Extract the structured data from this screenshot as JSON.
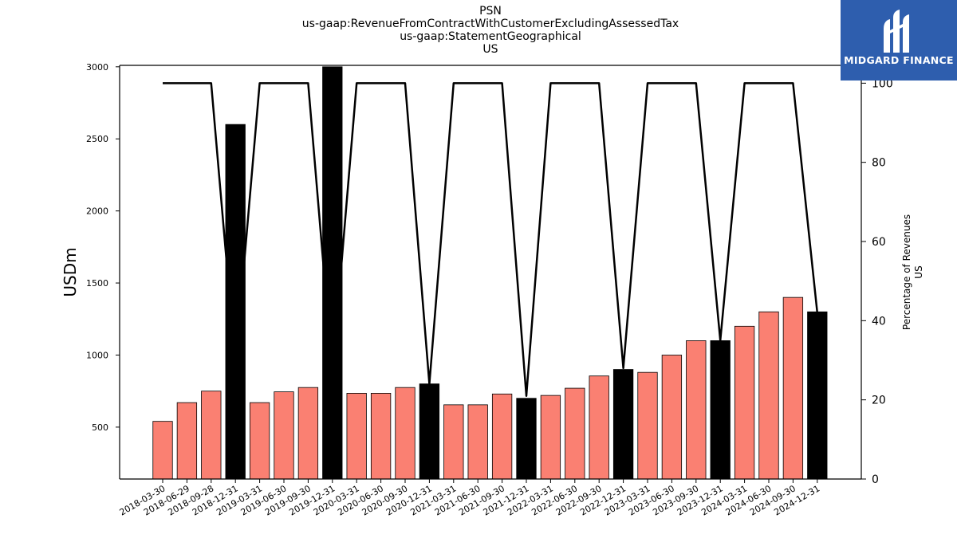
{
  "title_lines": [
    "PSN",
    "us-gaap:RevenueFromContractWithCustomerExcludingAssessedTax",
    "us-gaap:StatementGeographical",
    "US"
  ],
  "logo": {
    "text": "MIDGARD FINANCE",
    "color": "#2e5eae"
  },
  "colors": {
    "bar_regular": "#fa8072",
    "bar_highlight": "#000000",
    "line": "#000000"
  },
  "chart_data": {
    "type": "bar",
    "title": "PSN",
    "ylabel": "USDm",
    "y2label": [
      "Percentage of Revenues",
      "US"
    ],
    "ylim": [
      140,
      3010
    ],
    "y2lim": [
      0,
      104.5
    ],
    "yticks": [
      500,
      1000,
      1500,
      2000,
      2500,
      3000
    ],
    "y2ticks": [
      0,
      20,
      40,
      60,
      80,
      100
    ],
    "categories": [
      "2018-03-30",
      "2018-06-29",
      "2018-09-28",
      "2018-12-31",
      "2019-03-31",
      "2019-06-30",
      "2019-09-30",
      "2019-12-31",
      "2020-03-31",
      "2020-06-30",
      "2020-09-30",
      "2020-12-31",
      "2021-03-31",
      "2021-06-30",
      "2021-09-30",
      "2021-12-31",
      "2022-03-31",
      "2022-06-30",
      "2022-09-30",
      "2022-12-31",
      "2023-03-31",
      "2023-06-30",
      "2023-09-30",
      "2023-12-31",
      "2024-03-31",
      "2024-06-30",
      "2024-09-30",
      "2024-12-31"
    ],
    "series": [
      {
        "type": "bar",
        "axis": "left",
        "values": [
          540,
          670,
          750,
          2600,
          670,
          745,
          775,
          3000,
          735,
          735,
          775,
          800,
          655,
          655,
          730,
          700,
          720,
          770,
          855,
          900,
          880,
          1000,
          1100,
          1100,
          1200,
          1300,
          1400,
          1300
        ],
        "highlight": [
          false,
          false,
          false,
          true,
          false,
          false,
          false,
          true,
          false,
          false,
          false,
          true,
          false,
          false,
          false,
          true,
          false,
          false,
          false,
          true,
          false,
          false,
          false,
          true,
          false,
          false,
          false,
          true
        ]
      },
      {
        "type": "line",
        "axis": "right",
        "values": [
          100,
          100,
          100,
          29,
          100,
          100,
          100,
          27,
          100,
          100,
          100,
          24,
          100,
          100,
          100,
          21,
          100,
          100,
          100,
          28,
          100,
          100,
          100,
          35,
          100,
          100,
          100,
          42
        ]
      }
    ]
  }
}
